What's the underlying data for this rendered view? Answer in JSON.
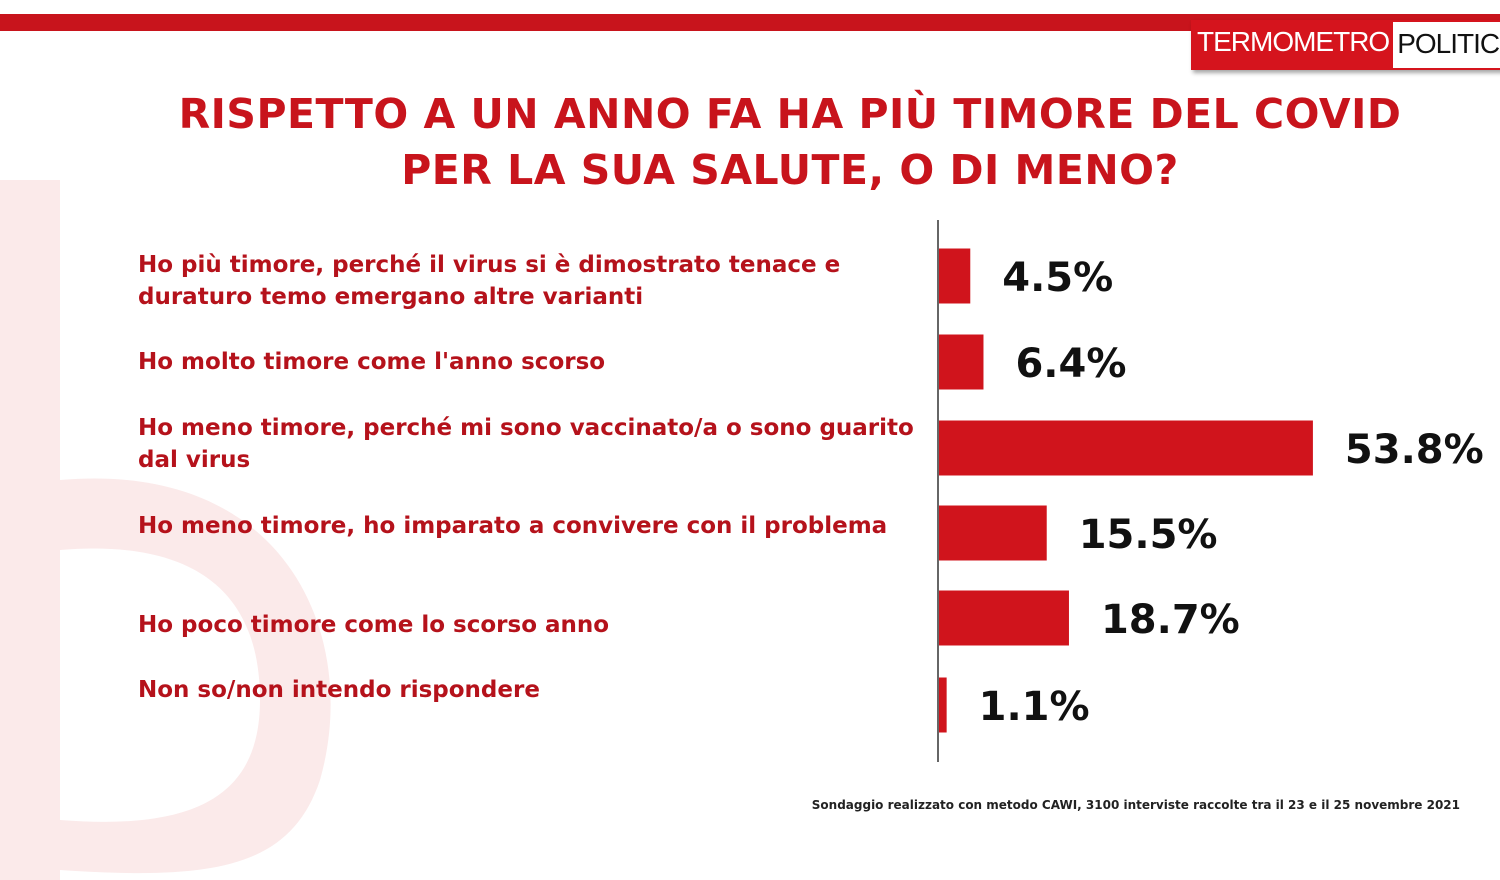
{
  "logo": {
    "left": "TERMOMETRO",
    "right": "POLITICO"
  },
  "title_lines": [
    "RISPETTO A UN ANNO FA HA PIÙ TIMORE DEL COVID",
    "PER LA SUA SALUTE, O DI MENO?"
  ],
  "colors": {
    "accent": "#c8141c",
    "bar": "#d0141c",
    "value_text": "#111111"
  },
  "chart_data": {
    "type": "bar",
    "orientation": "horizontal",
    "categories": [
      "Ho più timore, perché il virus si è dimostrato tenace e duraturo temo emergano altre varianti",
      "Ho molto timore come l'anno scorso",
      "Ho meno timore, perché mi sono vaccinato/a o sono guarito dal virus",
      "Ho meno timore, ho imparato a convivere con il problema",
      "Ho poco timore come lo scorso anno",
      "Non so/non intendo rispondere"
    ],
    "values": [
      4.5,
      6.4,
      53.8,
      15.5,
      18.7,
      1.1
    ],
    "value_labels": [
      "4.5%",
      "6.4%",
      "53.8%",
      "15.5%",
      "18.7%",
      "1.1%"
    ],
    "unit": "%",
    "grid": false,
    "legend": "none"
  },
  "footnote": "Sondaggio realizzato con metodo CAWI, 3100 interviste raccolte tra il 23 e il 25 novembre 2021"
}
